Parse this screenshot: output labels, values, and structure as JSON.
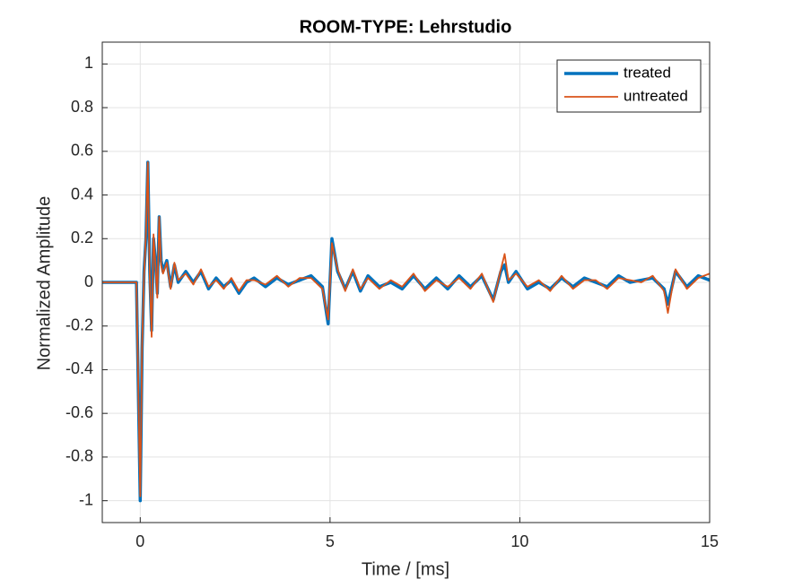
{
  "chart_data": {
    "type": "line",
    "title": "ROOM-TYPE: Lehrstudio",
    "xlabel": "Time / [ms]",
    "ylabel": "Normalized Amplitude",
    "x": [
      -1,
      -0.1,
      0,
      0.05,
      0.1,
      0.15,
      0.2,
      0.25,
      0.3,
      0.35,
      0.4,
      0.45,
      0.5,
      0.55,
      0.6,
      0.7,
      0.8,
      0.9,
      1.0,
      1.2,
      1.4,
      1.6,
      1.8,
      2.0,
      2.2,
      2.4,
      2.6,
      2.8,
      3.0,
      3.3,
      3.6,
      3.9,
      4.2,
      4.5,
      4.8,
      4.95,
      5.05,
      5.2,
      5.4,
      5.6,
      5.8,
      6.0,
      6.3,
      6.6,
      6.9,
      7.2,
      7.5,
      7.8,
      8.1,
      8.4,
      8.7,
      9.0,
      9.3,
      9.5,
      9.6,
      9.7,
      9.9,
      10.2,
      10.5,
      10.8,
      11.1,
      11.4,
      11.7,
      12.0,
      12.3,
      12.6,
      12.9,
      13.2,
      13.5,
      13.8,
      13.9,
      14.1,
      14.4,
      14.7,
      15
    ],
    "series": [
      {
        "name": "treated",
        "color": "#0072bd",
        "width": 3.5,
        "values": [
          0,
          0,
          -1,
          -0.3,
          0.05,
          0.2,
          0.55,
          0.05,
          -0.22,
          0.2,
          0.1,
          -0.05,
          0.3,
          0.1,
          0.05,
          0.1,
          -0.02,
          0.08,
          0,
          0.05,
          0,
          0.05,
          -0.03,
          0.02,
          -0.02,
          0.01,
          -0.05,
          0,
          0.02,
          -0.02,
          0.02,
          -0.01,
          0.01,
          0.03,
          -0.02,
          -0.19,
          0.2,
          0.05,
          -0.03,
          0.05,
          -0.04,
          0.03,
          -0.02,
          0,
          -0.03,
          0.03,
          -0.03,
          0.02,
          -0.03,
          0.03,
          -0.02,
          0.03,
          -0.08,
          0.05,
          0.08,
          0,
          0.05,
          -0.03,
          0,
          -0.03,
          0.02,
          -0.02,
          0.02,
          0,
          -0.02,
          0.03,
          0,
          0.01,
          0.02,
          -0.03,
          -0.1,
          0.05,
          -0.02,
          0.03,
          0.01
        ]
      },
      {
        "name": "untreated",
        "color": "#d95319",
        "width": 1.8,
        "values": [
          0,
          0,
          -0.98,
          -0.28,
          0.03,
          0.22,
          0.55,
          0.03,
          -0.25,
          0.22,
          0.08,
          -0.07,
          0.3,
          0.08,
          0.04,
          0.09,
          -0.03,
          0.09,
          0.01,
          0.04,
          -0.01,
          0.06,
          -0.02,
          0.01,
          -0.03,
          0.02,
          -0.04,
          0.01,
          0.01,
          -0.01,
          0.03,
          -0.02,
          0.02,
          0.02,
          -0.03,
          -0.17,
          0.18,
          0.06,
          -0.04,
          0.06,
          -0.03,
          0.02,
          -0.03,
          0.01,
          -0.02,
          0.04,
          -0.04,
          0.01,
          -0.02,
          0.02,
          -0.03,
          0.04,
          -0.09,
          0.06,
          0.13,
          0.01,
          0.04,
          -0.02,
          0.01,
          -0.04,
          0.03,
          -0.03,
          0.01,
          0.01,
          -0.03,
          0.02,
          0.01,
          0,
          0.03,
          -0.04,
          -0.14,
          0.06,
          -0.03,
          0.02,
          0.04
        ]
      }
    ],
    "xlim": [
      -1,
      15
    ],
    "ylim": [
      -1.1,
      1.1
    ],
    "xticks": [
      0,
      5,
      10,
      15
    ],
    "yticks": [
      -1,
      -0.8,
      -0.6,
      -0.4,
      -0.2,
      0,
      0.2,
      0.4,
      0.6,
      0.8,
      1
    ],
    "grid": true,
    "legend": "northeast"
  }
}
